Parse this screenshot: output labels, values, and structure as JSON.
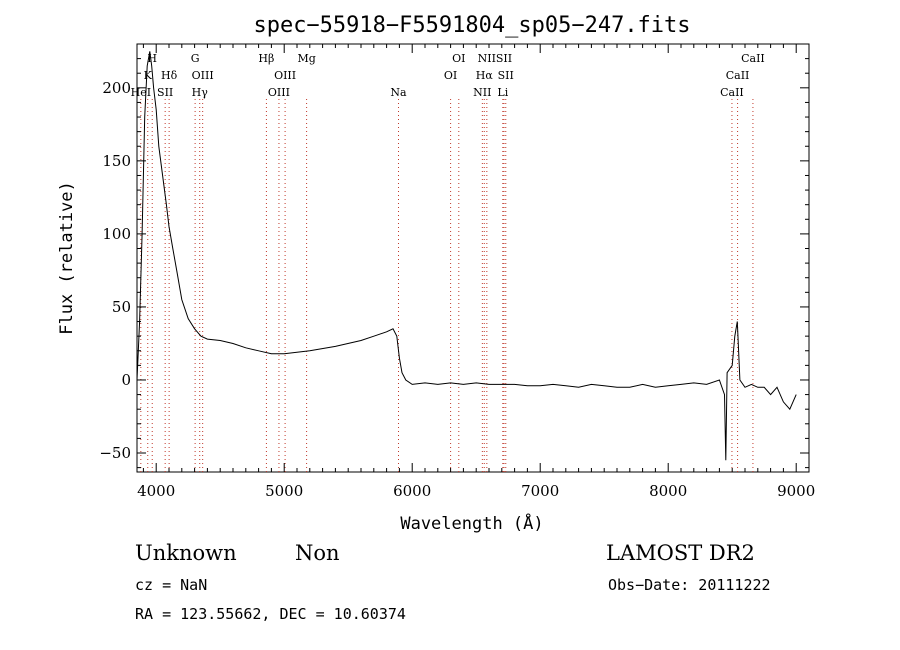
{
  "chart_data": {
    "type": "line",
    "title": "spec−55918−F5591804_sp05−247.fits",
    "xlabel": "Wavelength (Å)",
    "ylabel": "Flux (relative)",
    "xlim": [
      3850,
      9100
    ],
    "ylim": [
      -63,
      230
    ],
    "x_ticks": [
      4000,
      5000,
      6000,
      7000,
      8000,
      9000
    ],
    "y_ticks": [
      -50,
      0,
      50,
      100,
      150,
      200
    ],
    "y_tick_labels": [
      "−50",
      "0",
      "50",
      "100",
      "150",
      "200"
    ],
    "grid": false,
    "line_color": "#000000",
    "marker_color": "#c0392b",
    "series": [
      {
        "x": [
          3850,
          3870,
          3890,
          3910,
          3930,
          3950,
          3965,
          3980,
          4000,
          4020,
          4050,
          4080,
          4100,
          4130,
          4160,
          4200,
          4250,
          4300,
          4350,
          4400,
          4500,
          4600,
          4700,
          4800,
          4900,
          5000,
          5200,
          5400,
          5600,
          5700,
          5800,
          5850,
          5880,
          5900,
          5920,
          5950,
          6000,
          6100,
          6200,
          6300,
          6400,
          6500,
          6600,
          6700,
          6800,
          6900,
          7000,
          7100,
          7200,
          7300,
          7400,
          7500,
          7600,
          7700,
          7800,
          7900,
          8000,
          8100,
          8200,
          8300,
          8400,
          8440,
          8450,
          8460,
          8500,
          8520,
          8540,
          8560,
          8600,
          8650,
          8700,
          8750,
          8800,
          8850,
          8900,
          8950,
          9000
        ],
        "y": [
          0,
          40,
          100,
          180,
          215,
          225,
          215,
          200,
          185,
          160,
          140,
          120,
          105,
          90,
          75,
          55,
          42,
          35,
          30,
          28,
          27,
          25,
          22,
          20,
          18,
          18,
          20,
          23,
          27,
          30,
          33,
          35,
          30,
          15,
          5,
          0,
          -3,
          -2,
          -3,
          -2,
          -3,
          -2,
          -3,
          -3,
          -3,
          -4,
          -4,
          -3,
          -4,
          -5,
          -3,
          -4,
          -5,
          -5,
          -3,
          -5,
          -4,
          -3,
          -2,
          -3,
          0,
          -10,
          -55,
          5,
          10,
          30,
          40,
          0,
          -5,
          -3,
          -5,
          -5,
          -10,
          -5,
          -15,
          -20,
          -10
        ]
      }
    ],
    "line_markers": [
      {
        "wl": 3880,
        "label": "HeI",
        "row": 3
      },
      {
        "wl": 3934,
        "label": "K",
        "row": 2
      },
      {
        "wl": 3969,
        "label": "H",
        "row": 1
      },
      {
        "wl": 4101,
        "label": "Hδ",
        "row": 2
      },
      {
        "wl": 4070,
        "label": "SII",
        "row": 3
      },
      {
        "wl": 4304,
        "label": "G",
        "row": 1
      },
      {
        "wl": 4363,
        "label": "OIII",
        "row": 2
      },
      {
        "wl": 4340,
        "label": "Hγ",
        "row": 3
      },
      {
        "wl": 4861,
        "label": "Hβ",
        "row": 1
      },
      {
        "wl": 4959,
        "label": "OIII",
        "row": 3
      },
      {
        "wl": 5007,
        "label": "OIII",
        "row": 2
      },
      {
        "wl": 5175,
        "label": "Mg",
        "row": 1
      },
      {
        "wl": 5893,
        "label": "Na",
        "row": 3
      },
      {
        "wl": 6300,
        "label": "OI",
        "row": 2
      },
      {
        "wl": 6364,
        "label": "OI",
        "row": 1
      },
      {
        "wl": 6548,
        "label": "NII",
        "row": 3
      },
      {
        "wl": 6563,
        "label": "Hα",
        "row": 2
      },
      {
        "wl": 6583,
        "label": "NII",
        "row": 1
      },
      {
        "wl": 6717,
        "label": "SII",
        "row": 1
      },
      {
        "wl": 6731,
        "label": "SII",
        "row": 2
      },
      {
        "wl": 6708,
        "label": "Li",
        "row": 3
      },
      {
        "wl": 8498,
        "label": "CaII",
        "row": 3
      },
      {
        "wl": 8542,
        "label": "CaII",
        "row": 2
      },
      {
        "wl": 8662,
        "label": "CaII",
        "row": 1
      }
    ]
  },
  "info": {
    "object_class": "Unknown",
    "subclass": "Non",
    "survey": "LAMOST DR2",
    "cz": "cz = NaN",
    "obs_date": "Obs−Date: 20111222",
    "coords": "RA = 123.55662, DEC =  10.60374"
  }
}
